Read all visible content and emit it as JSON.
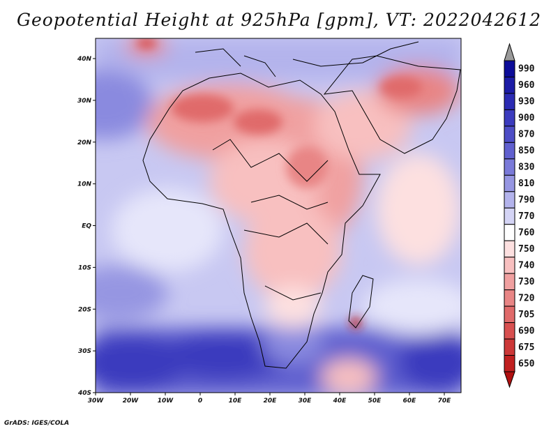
{
  "title": "Geopotential Height at 925hPa [gpm], VT: 2022042612",
  "credit": "GrADS: IGES/COLA",
  "map": {
    "lon_labels": [
      "30W",
      "20W",
      "10W",
      "0",
      "10E",
      "20E",
      "30E",
      "40E",
      "50E",
      "60E",
      "70E"
    ],
    "lat_labels": [
      "40N",
      "30N",
      "20N",
      "10N",
      "EQ",
      "10S",
      "20S",
      "30S",
      "40S"
    ]
  },
  "colorbar": {
    "levels": [
      {
        "label": "990",
        "color": "#0c0c99"
      },
      {
        "label": "960",
        "color": "#1c1ca6"
      },
      {
        "label": "930",
        "color": "#2b2bb3"
      },
      {
        "label": "900",
        "color": "#3b3bbe"
      },
      {
        "label": "870",
        "color": "#4d4dc6"
      },
      {
        "label": "850",
        "color": "#6060cf"
      },
      {
        "label": "830",
        "color": "#7a7ad9"
      },
      {
        "label": "810",
        "color": "#9696e2"
      },
      {
        "label": "790",
        "color": "#b3b3ec"
      },
      {
        "label": "770",
        "color": "#d4d4f5"
      },
      {
        "label": "760",
        "color": "#ffffff"
      },
      {
        "label": "750",
        "color": "#fde0e0"
      },
      {
        "label": "740",
        "color": "#f8c0c0"
      },
      {
        "label": "730",
        "color": "#f0a0a0"
      },
      {
        "label": "720",
        "color": "#e88585"
      },
      {
        "label": "705",
        "color": "#e06a6a"
      },
      {
        "label": "690",
        "color": "#d85050"
      },
      {
        "label": "675",
        "color": "#cc3838"
      },
      {
        "label": "650",
        "color": "#c02020"
      }
    ],
    "over_color": "#9a9a9a",
    "under_color": "#b01010"
  }
}
